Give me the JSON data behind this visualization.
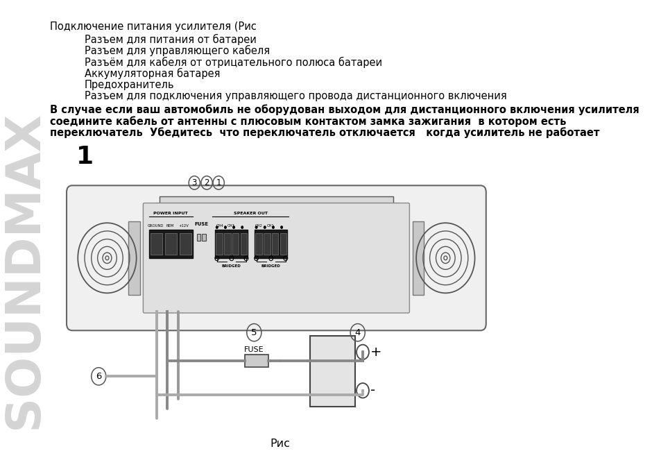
{
  "bg_color": "#ffffff",
  "text_color": "#000000",
  "title_line": "Подключение питания усилителя (Рис",
  "indent_lines": [
    "Разъем для питания от батареи",
    "Разъем для управляющего кабеля",
    "Разъём для кабеля от отрицательного полюса батареи",
    "Аккумуляторная батарея",
    "Предохранитель",
    "Разъем для подключения управляющего провода дистанционного включения"
  ],
  "body_lines": [
    "В случае если ваш автомобиль не оборудован выходом для дистанционного включения усилителя",
    "соедините кабель от антенны с плюсовым контактом замка зажигания  в котором есть",
    "переключатель  Убедитесь  что переключатель отключается   когда усилитель не работает"
  ],
  "number_label": "1",
  "caption": "Рис",
  "soundmax_text": "SOUNDMAX",
  "plus_text": "+",
  "minus_text": "-"
}
